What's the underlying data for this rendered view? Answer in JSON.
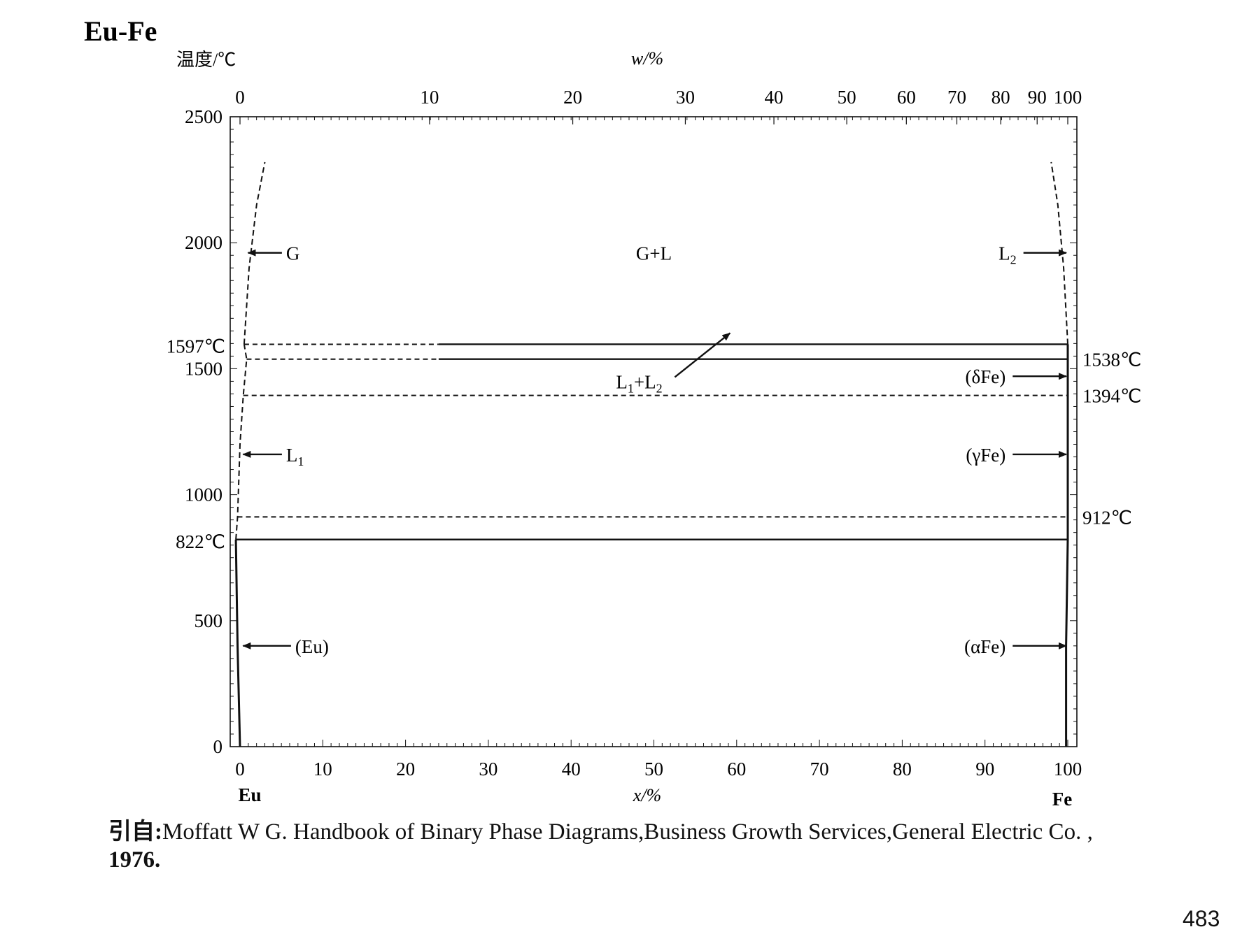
{
  "chart_data": {
    "type": "line",
    "title": "Eu-Fe",
    "ylabel": "温度/℃",
    "top_xlabel": "w/%",
    "xlabel": "x/%",
    "xlim": [
      0,
      100
    ],
    "ylim": [
      0,
      2500
    ],
    "x_ticks": [
      "0",
      "10",
      "20",
      "30",
      "40",
      "50",
      "60",
      "70",
      "80",
      "90",
      "100"
    ],
    "x_tick_values": [
      0,
      10,
      20,
      30,
      40,
      50,
      60,
      70,
      80,
      90,
      100
    ],
    "top_ticks": [
      "0",
      "10",
      "20",
      "30",
      "40",
      "50",
      "60",
      "70",
      "80",
      "90",
      "100"
    ],
    "top_tick_positions": [
      0,
      22.9,
      40.2,
      53.8,
      64.5,
      73.3,
      80.5,
      86.6,
      91.9,
      96.3,
      100
    ],
    "y_ticks": [
      "0",
      "500",
      "1000",
      "1500",
      "2000",
      "2500"
    ],
    "y_tick_values": [
      0,
      500,
      1000,
      1500,
      2000,
      2500
    ],
    "left_element": "Eu",
    "right_element": "Fe",
    "temperature_labels": [
      {
        "text": "1597℃",
        "temp": 1597,
        "side": "left"
      },
      {
        "text": "822℃",
        "temp": 822,
        "side": "left"
      },
      {
        "text": "1538℃",
        "temp": 1538,
        "side": "right"
      },
      {
        "text": "1394℃",
        "temp": 1394,
        "side": "right"
      },
      {
        "text": "912℃",
        "temp": 912,
        "side": "right"
      }
    ],
    "horizontal_lines": [
      {
        "temp": 1597,
        "x_start": 0.5,
        "x_end": 100,
        "solid_from": 24,
        "style": "dash-then-solid"
      },
      {
        "temp": 1538,
        "x_start": 0.8,
        "x_end": 100,
        "solid_from": 24,
        "style": "dash-then-solid"
      },
      {
        "temp": 1394,
        "x_start": 0.4,
        "x_end": 100,
        "style": "dashed"
      },
      {
        "temp": 912,
        "x_start": -0.3,
        "x_end": 100,
        "style": "dashed"
      },
      {
        "temp": 822,
        "x_start": -0.5,
        "x_end": 100,
        "style": "solid"
      }
    ],
    "boundary_curves": [
      {
        "name": "Eu gas boundary",
        "style": "dashed",
        "points": [
          [
            0.5,
            1597
          ],
          [
            1.1,
            1900
          ],
          [
            2.0,
            2150
          ],
          [
            3.0,
            2320
          ]
        ]
      },
      {
        "name": "Eu L1 boundary",
        "style": "dashed",
        "points": [
          [
            -0.5,
            822
          ],
          [
            -0.3,
            912
          ],
          [
            0.0,
            1200
          ],
          [
            0.4,
            1394
          ],
          [
            0.8,
            1538
          ],
          [
            0.5,
            1597
          ]
        ]
      },
      {
        "name": "Eu solidus",
        "style": "solid",
        "points": [
          [
            -0.5,
            822
          ],
          [
            -0.3,
            400
          ],
          [
            0.0,
            0
          ]
        ]
      },
      {
        "name": "Fe L2 boundary",
        "style": "dashed",
        "points": [
          [
            100,
            1597
          ],
          [
            99.5,
            1900
          ],
          [
            98.8,
            2150
          ],
          [
            98,
            2320
          ]
        ]
      },
      {
        "name": "Fe solid boundary",
        "style": "solid",
        "points": [
          [
            100,
            1597
          ],
          [
            100,
            1538
          ],
          [
            100,
            1394
          ],
          [
            100,
            912
          ],
          [
            100,
            822
          ],
          [
            99.8,
            400
          ],
          [
            99.8,
            0
          ]
        ]
      }
    ],
    "phase_labels": [
      {
        "text": "G+L",
        "x": 50,
        "temp": 1960
      },
      {
        "text": "L1+L2",
        "x": 50.5,
        "temp": 1450
      },
      {
        "text": "G",
        "x": 5.4,
        "temp": 1960,
        "arrow_to": [
          0.8,
          1960
        ]
      },
      {
        "text": "L2",
        "x": 93.8,
        "temp": 1960,
        "arrow_to": [
          100,
          1960
        ]
      },
      {
        "text": "L1",
        "x": 5.4,
        "temp": 1160,
        "arrow_to": [
          0.2,
          1160
        ]
      },
      {
        "text": "(Eu)",
        "x": 6.5,
        "temp": 400,
        "arrow_to": [
          0.2,
          400
        ]
      },
      {
        "text": "(δFe)",
        "x": 92.5,
        "temp": 1470,
        "arrow_to": [
          100,
          1470
        ]
      },
      {
        "text": "(γFe)",
        "x": 92.5,
        "temp": 1160,
        "arrow_to": [
          100,
          1160
        ]
      },
      {
        "text": "(αFe)",
        "x": 92.5,
        "temp": 400,
        "arrow_to": [
          100,
          400
        ]
      }
    ]
  },
  "reference": {
    "prefix": "引自:",
    "text": "Moffatt W G. Handbook of Binary Phase Diagrams,Business Growth Services,General Electric Co. ,",
    "year": "1976."
  },
  "page_number": "483"
}
